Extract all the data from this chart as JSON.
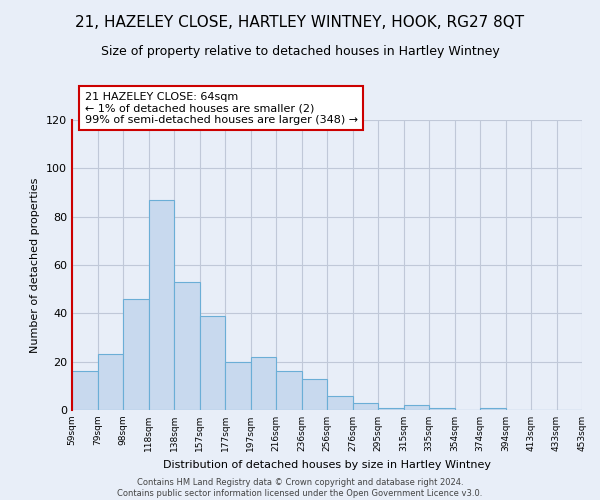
{
  "title": "21, HAZELEY CLOSE, HARTLEY WINTNEY, HOOK, RG27 8QT",
  "subtitle": "Size of property relative to detached houses in Hartley Wintney",
  "xlabel": "Distribution of detached houses by size in Hartley Wintney",
  "ylabel": "Number of detached properties",
  "bar_values": [
    16,
    23,
    46,
    87,
    53,
    39,
    20,
    22,
    16,
    13,
    6,
    3,
    1,
    2,
    1,
    0,
    1,
    0,
    0,
    0
  ],
  "bin_labels": [
    "59sqm",
    "79sqm",
    "98sqm",
    "118sqm",
    "138sqm",
    "157sqm",
    "177sqm",
    "197sqm",
    "216sqm",
    "236sqm",
    "256sqm",
    "276sqm",
    "295sqm",
    "315sqm",
    "335sqm",
    "354sqm",
    "374sqm",
    "394sqm",
    "413sqm",
    "433sqm",
    "453sqm"
  ],
  "bar_color": "#c8d9ee",
  "bar_edge_color": "#6baed6",
  "highlight_color": "#cc0000",
  "annotation_title": "21 HAZELEY CLOSE: 64sqm",
  "annotation_line1": "← 1% of detached houses are smaller (2)",
  "annotation_line2": "99% of semi-detached houses are larger (348) →",
  "annotation_box_color": "#ffffff",
  "annotation_box_edge": "#cc0000",
  "ylim": [
    0,
    120
  ],
  "yticks": [
    0,
    20,
    40,
    60,
    80,
    100,
    120
  ],
  "footer1": "Contains HM Land Registry data © Crown copyright and database right 2024.",
  "footer2": "Contains public sector information licensed under the Open Government Licence v3.0.",
  "background_color": "#e8eef8",
  "plot_bg_color": "#e8eef8",
  "grid_color": "#c0c8d8",
  "title_fontsize": 11,
  "subtitle_fontsize": 9
}
